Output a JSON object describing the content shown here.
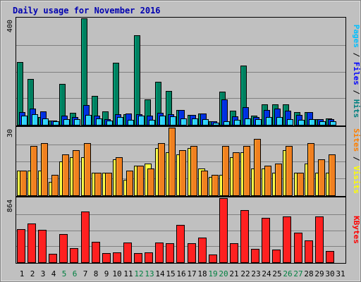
{
  "chart_data": {
    "title": "Daily usage for November 2016",
    "type": "bar",
    "x": [
      "1",
      "2",
      "3",
      "4",
      "5",
      "6",
      "7",
      "8",
      "9",
      "10",
      "11",
      "12",
      "13",
      "14",
      "15",
      "16",
      "17",
      "18",
      "19",
      "20",
      "21",
      "22",
      "23",
      "24",
      "25",
      "26",
      "27",
      "28",
      "29",
      "30",
      "31"
    ],
    "x_label_colors": {
      "weekday": "#000000",
      "weekend": "#008040"
    },
    "weekend_days": [
      5,
      6,
      12,
      13,
      19,
      20,
      26,
      27
    ],
    "panels": [
      {
        "name": "top",
        "ymax": 400,
        "ymax_label": "400",
        "legend": [
          {
            "text": "Pages",
            "color": "#00c0ff"
          },
          {
            "text": " / ",
            "color": "#000000"
          },
          {
            "text": "Files",
            "color": "#0000ff"
          },
          {
            "text": " / ",
            "color": "#000000"
          },
          {
            "text": "Hits",
            "color": "#008080"
          }
        ],
        "series": [
          {
            "name": "Hits",
            "color": "#008060",
            "values": [
              236,
              173,
              30,
              15,
              153,
              44,
              400,
              108,
              51,
              232,
              40,
              337,
              96,
              162,
              126,
              55,
              36,
              42,
              14,
              124,
              52,
              222,
              35,
              77,
              77,
              77,
              48,
              48,
              22,
              24,
              0
            ]
          },
          {
            "name": "Files",
            "color": "#0030e0",
            "values": [
              48,
              60,
              51,
              15,
              34,
              28,
              75,
              35,
              22,
              41,
              42,
              41,
              35,
              46,
              40,
              55,
              38,
              42,
              12,
              95,
              32,
              66,
              28,
              55,
              61,
              52,
              38,
              48,
              20,
              20,
              0
            ]
          },
          {
            "name": "Pages",
            "color": "#30d0ff",
            "values": [
              34,
              40,
              25,
              12,
              22,
              22,
              38,
              24,
              16,
              30,
              18,
              35,
              19,
              35,
              32,
              25,
              25,
              21,
              8,
              12,
              18,
              25,
              22,
              30,
              30,
              22,
              18,
              20,
              13,
              14,
              0
            ]
          }
        ]
      },
      {
        "name": "middle",
        "ymax": 30,
        "ymax_label": "30",
        "legend": [
          {
            "text": "Sites",
            "color": "#ff8000"
          },
          {
            "text": " / ",
            "color": "#000000"
          },
          {
            "text": "Visits",
            "color": "#ffff00"
          }
        ],
        "series": [
          {
            "name": "Visits",
            "color": "#ffff40",
            "values": [
              11,
              11,
              11,
              6,
              15,
              17,
              17,
              10,
              10,
              16,
              7,
              13,
              14,
              21,
              19,
              18,
              21,
              12,
              8,
              9,
              17,
              19,
              12,
              12,
              10,
              20,
              10,
              14,
              10,
              10,
              0
            ]
          },
          {
            "name": "Sites",
            "color": "#f08020",
            "values": [
              11,
              22,
              23,
              9,
              18,
              20,
              23,
              10,
              10,
              17,
              11,
              13,
              12,
              23,
              30,
              20,
              22,
              11,
              9,
              22,
              19,
              22,
              25,
              13,
              14,
              22,
              10,
              23,
              16,
              18,
              0
            ]
          }
        ]
      },
      {
        "name": "bottom",
        "ymax": 864,
        "ymax_label": "864",
        "legend": [
          {
            "text": "KBytes",
            "color": "#ff0000"
          }
        ],
        "series": [
          {
            "name": "KBytes",
            "color": "#ff2020",
            "values": [
              448,
              520,
              440,
              110,
              376,
              190,
              680,
              275,
              120,
              130,
              270,
              120,
              130,
              270,
              260,
              500,
              255,
              335,
              100,
              864,
              260,
              700,
              180,
              600,
              170,
              620,
              400,
              290,
              620,
              150,
              0
            ]
          }
        ]
      }
    ]
  }
}
